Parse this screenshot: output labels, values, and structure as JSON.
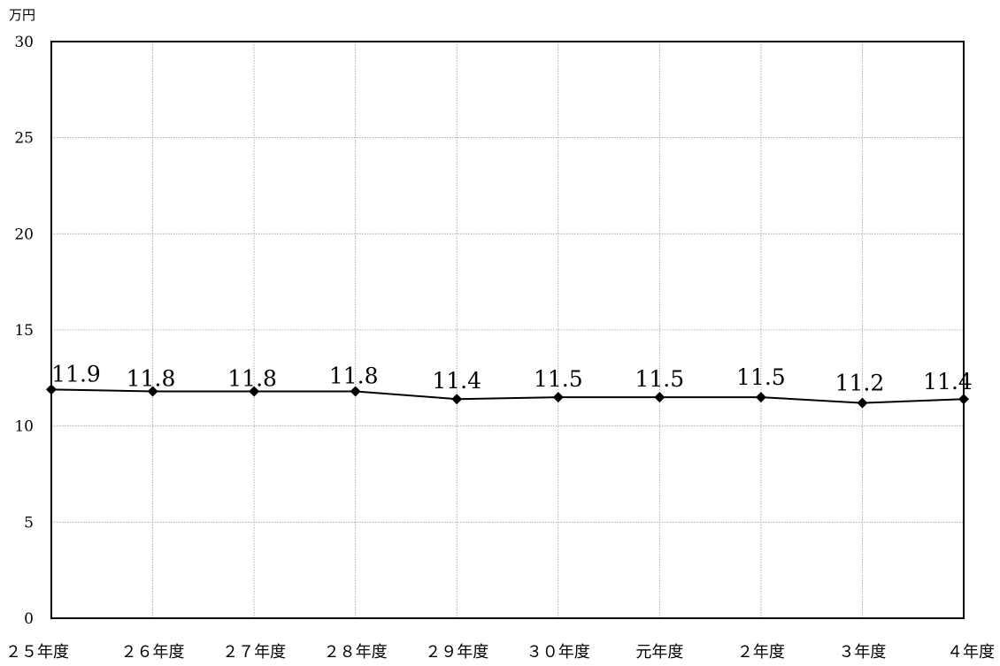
{
  "chart_data": {
    "type": "line",
    "unit": "万円",
    "categories": [
      "２５年度",
      "２６年度",
      "２７年度",
      "２８年度",
      "２９年度",
      "３０年度",
      "元年度",
      "２年度",
      "３年度",
      "４年度"
    ],
    "series": [
      {
        "values": [
          11.9,
          11.8,
          11.8,
          11.8,
          11.4,
          11.5,
          11.5,
          11.5,
          11.2,
          11.4
        ],
        "data_labels": [
          "11.9",
          "11.8",
          "11.8",
          "11.8",
          "11.4",
          "11.5",
          "11.5",
          "11.5",
          "11.2",
          "11.4"
        ]
      }
    ],
    "ylim": [
      0,
      30
    ],
    "yticks": [
      0,
      5,
      10,
      15,
      20,
      25,
      30
    ],
    "ytick_labels": [
      "0",
      "5",
      "10",
      "15",
      "20",
      "25",
      "30"
    ],
    "grid": true,
    "legend": "none",
    "line_color": "#000000",
    "marker": "diamond"
  }
}
